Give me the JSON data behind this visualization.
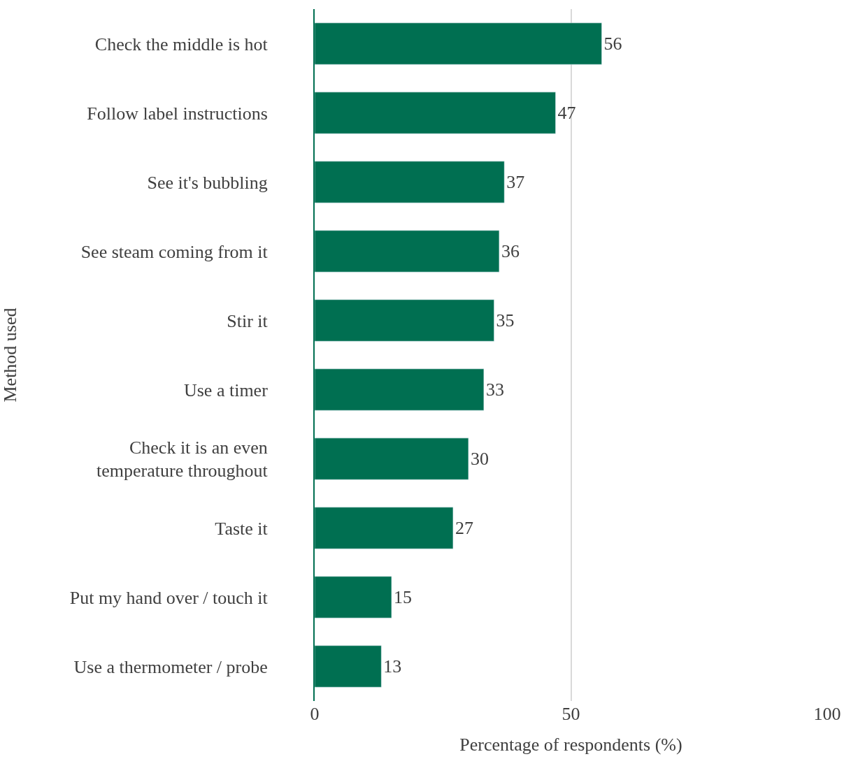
{
  "chart_data": {
    "type": "bar",
    "orientation": "horizontal",
    "xlabel": "Percentage of respondents (%)",
    "ylabel": "Method used",
    "categories": [
      "Check the middle is hot",
      "Follow label instructions",
      "See it's bubbling",
      "See steam coming from it",
      "Stir it",
      "Use a timer",
      "Check it is an even temperature throughout",
      "Taste it",
      "Put my hand over / touch it",
      "Use a thermometer / probe"
    ],
    "values": [
      56,
      47,
      37,
      36,
      35,
      33,
      30,
      27,
      15,
      13
    ],
    "color": "#006f51",
    "xlim": [
      0,
      100
    ],
    "xticks": [
      0,
      50,
      100
    ],
    "grid": "x",
    "data_labels": true
  }
}
